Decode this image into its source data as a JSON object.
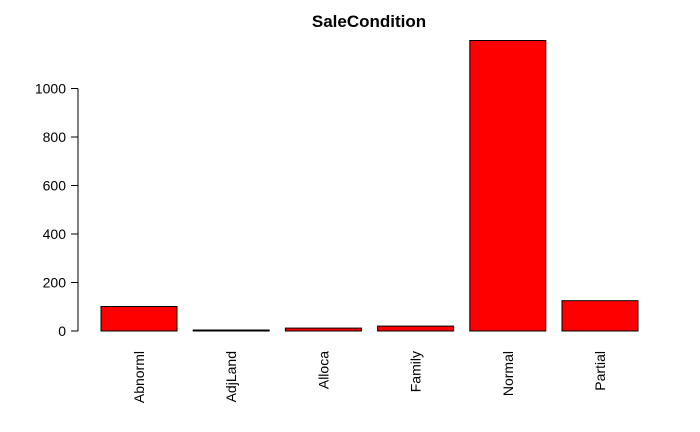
{
  "chart_data": {
    "type": "bar",
    "title": "SaleCondition",
    "xlabel": "",
    "ylabel": "",
    "categories": [
      "Abnorml",
      "AdjLand",
      "Alloca",
      "Family",
      "Normal",
      "Partial"
    ],
    "values": [
      101,
      4,
      12,
      20,
      1198,
      125
    ],
    "yticks": [
      0,
      200,
      400,
      600,
      800,
      1000
    ],
    "ytick_labels": [
      "0",
      "200",
      "400",
      "600",
      "800",
      "1000"
    ],
    "ylim": [
      0,
      1198
    ],
    "bar_color": "#ff0000",
    "bar_edge_color": "#000000",
    "grid": false,
    "legend": "none",
    "x_label_orientation": "vertical"
  }
}
